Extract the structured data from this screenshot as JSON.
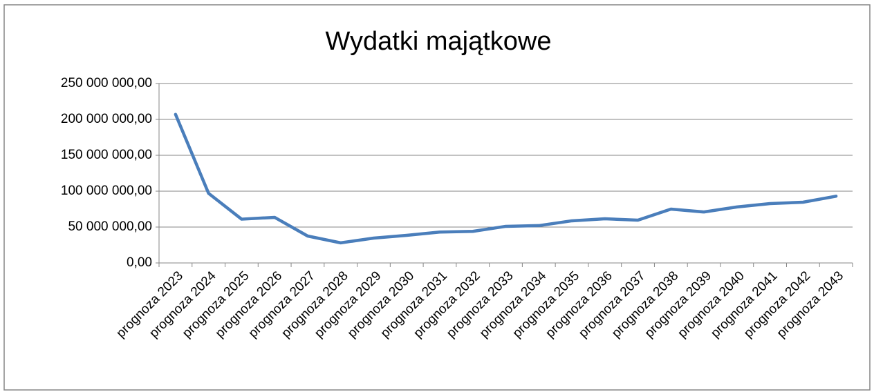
{
  "chart_data": {
    "type": "line",
    "title": "Wydatki majątkowe",
    "categories": [
      "prognoza 2023",
      "prognoza 2024",
      "prognoza 2025",
      "prognoza 2026",
      "prognoza 2027",
      "prognoza 2028",
      "prognoza 2029",
      "prognoza 2030",
      "prognoza 2031",
      "prognoza 2032",
      "prognoza 2033",
      "prognoza 2034",
      "prognoza 2035",
      "prognoza 2036",
      "prognoza 2037",
      "prognoza 2038",
      "prognoza 2039",
      "prognoza 2040",
      "prognoza 2041",
      "prognoza 2042",
      "prognoza 2043"
    ],
    "series": [
      {
        "name": "Wydatki majątkowe",
        "color": "#4a7ebb",
        "values": [
          207000000,
          97000000,
          61000000,
          63500000,
          37500000,
          28000000,
          34600000,
          38500000,
          43000000,
          44000000,
          51000000,
          52000000,
          58700000,
          61500000,
          59600000,
          75000000,
          71000000,
          78000000,
          82700000,
          84600000,
          93000000
        ]
      }
    ],
    "ylim": [
      0,
      250000000
    ],
    "yticks": [
      {
        "value": 0,
        "label": "0,00"
      },
      {
        "value": 50000000,
        "label": "50 000 000,00"
      },
      {
        "value": 100000000,
        "label": "100 000 000,00"
      },
      {
        "value": 150000000,
        "label": "150 000 000,00"
      },
      {
        "value": 200000000,
        "label": "200 000 000,00"
      },
      {
        "value": 250000000,
        "label": "250 000 000,00"
      }
    ],
    "grid": true
  }
}
